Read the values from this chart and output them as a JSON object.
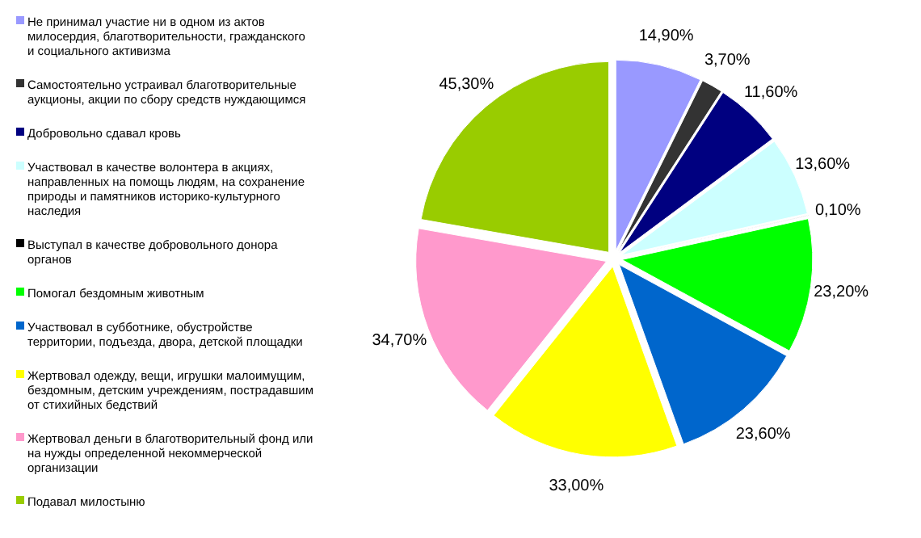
{
  "chart_data": {
    "type": "pie",
    "categories": [
      "Не принимал участие ни в одном из актов милосердия, благотворительности, гражданского и социального активизма",
      "Самостоятельно устраивал благотворительные аукционы, акции по сбору средств нуждающимся",
      "Добровольно сдавал кровь",
      "Участвовал в качестве волонтера в акциях, направленных на помощь людям, на сохранение природы и памятников историко-культурного наследия",
      "Выступал в качестве добровольного донора органов",
      "Помогал бездомным животным",
      "Участвовал в субботнике, обустройстве территории, подъезда, двора, детской площадки",
      "Жертвовал одежду, вещи, игрушки малоимущим, бездомным, детским учреждениям, пострадавшим от стихийных бедствий",
      "Жертвовал деньги в благотворительный фонд или на нужды определенной некоммерческой организации",
      "Подавал милостыню"
    ],
    "values": [
      14.9,
      3.7,
      11.6,
      13.6,
      0.1,
      23.2,
      23.6,
      33.0,
      34.7,
      45.3
    ],
    "value_labels": [
      "14,90%",
      "3,70%",
      "11,60%",
      "13,60%",
      "0,10%",
      "23,20%",
      "23,60%",
      "33,00%",
      "34,70%",
      "45,30%"
    ],
    "colors": [
      "#9999ff",
      "#333333",
      "#000080",
      "#ccffff",
      "#000000",
      "#00ff00",
      "#0066cc",
      "#ffff00",
      "#ff99cc",
      "#99cc00"
    ],
    "legend": "left"
  }
}
